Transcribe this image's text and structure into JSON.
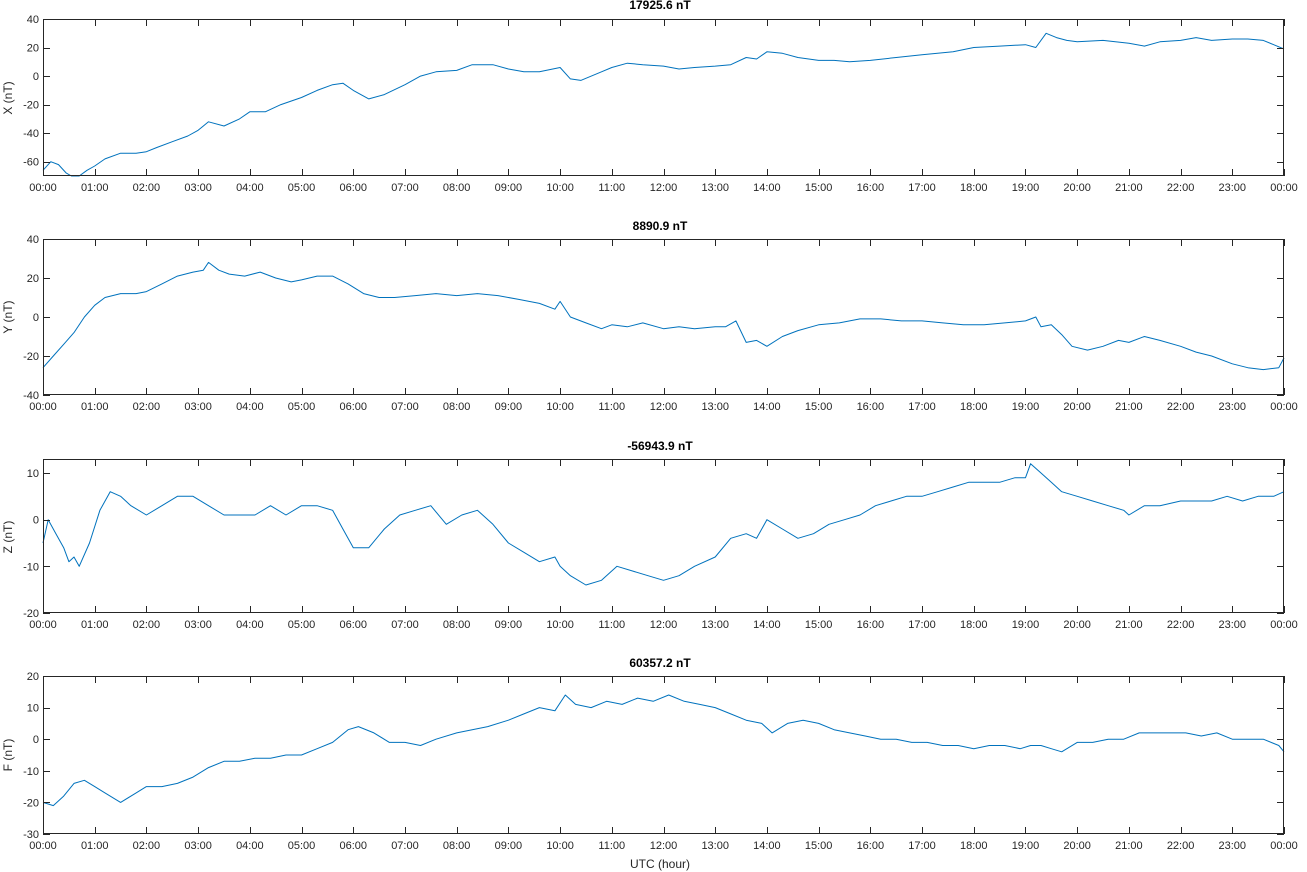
{
  "chart_data": [
    {
      "type": "line",
      "title": "17925.6 nT",
      "ylabel": "X (nT)",
      "xlabel": "",
      "ylim": [
        -70,
        40
      ],
      "yticks": [
        -60,
        -40,
        -20,
        0,
        20,
        40
      ],
      "xlim": [
        0,
        24
      ],
      "xtick_labels": [
        "00:00",
        "01:00",
        "02:00",
        "03:00",
        "04:00",
        "05:00",
        "06:00",
        "07:00",
        "08:00",
        "09:00",
        "10:00",
        "11:00",
        "12:00",
        "13:00",
        "14:00",
        "15:00",
        "16:00",
        "17:00",
        "18:00",
        "19:00",
        "20:00",
        "21:00",
        "22:00",
        "23:00",
        "00:00"
      ],
      "color": "#0072BD",
      "series": [
        {
          "x": [
            0,
            0.15,
            0.3,
            0.45,
            0.55,
            0.7,
            0.85,
            1.0,
            1.2,
            1.5,
            1.8,
            2.0,
            2.2,
            2.5,
            2.8,
            3.0,
            3.2,
            3.5,
            3.8,
            4.0,
            4.3,
            4.6,
            5.0,
            5.3,
            5.6,
            5.8,
            6.0,
            6.3,
            6.6,
            7.0,
            7.3,
            7.6,
            8.0,
            8.3,
            8.7,
            9.0,
            9.3,
            9.6,
            10.0,
            10.2,
            10.4,
            10.8,
            11.0,
            11.3,
            11.6,
            12.0,
            12.3,
            12.6,
            13.0,
            13.3,
            13.6,
            13.8,
            14.0,
            14.3,
            14.6,
            15.0,
            15.3,
            15.6,
            16.0,
            16.5,
            17.0,
            17.3,
            17.6,
            18.0,
            18.5,
            19.0,
            19.2,
            19.4,
            19.6,
            19.8,
            20.0,
            20.5,
            21.0,
            21.3,
            21.6,
            22.0,
            22.3,
            22.6,
            23.0,
            23.3,
            23.6,
            23.8,
            24.0
          ],
          "y": [
            -66,
            -60,
            -62,
            -68,
            -71,
            -70,
            -66,
            -63,
            -58,
            -54,
            -54,
            -53,
            -50,
            -46,
            -42,
            -38,
            -32,
            -35,
            -30,
            -25,
            -25,
            -20,
            -15,
            -10,
            -6,
            -5,
            -10,
            -16,
            -13,
            -6,
            0,
            3,
            4,
            8,
            8,
            5,
            3,
            3,
            6,
            -2,
            -3,
            3,
            6,
            9,
            8,
            7,
            5,
            6,
            7,
            8,
            13,
            12,
            17,
            16,
            13,
            11,
            11,
            10,
            11,
            13,
            15,
            16,
            17,
            20,
            21,
            22,
            20,
            30,
            27,
            25,
            24,
            25,
            23,
            21,
            24,
            25,
            27,
            25,
            26,
            26,
            25,
            22,
            19
          ]
        }
      ]
    },
    {
      "type": "line",
      "title": "8890.9 nT",
      "ylabel": "Y (nT)",
      "xlabel": "",
      "ylim": [
        -40,
        40
      ],
      "yticks": [
        -40,
        -20,
        0,
        20,
        40
      ],
      "xlim": [
        0,
        24
      ],
      "xtick_labels": [
        "00:00",
        "01:00",
        "02:00",
        "03:00",
        "04:00",
        "05:00",
        "06:00",
        "07:00",
        "08:00",
        "09:00",
        "10:00",
        "11:00",
        "12:00",
        "13:00",
        "14:00",
        "15:00",
        "16:00",
        "17:00",
        "18:00",
        "19:00",
        "20:00",
        "21:00",
        "22:00",
        "23:00",
        "00:00"
      ],
      "color": "#0072BD",
      "series": [
        {
          "x": [
            0,
            0.2,
            0.4,
            0.6,
            0.8,
            1.0,
            1.2,
            1.5,
            1.8,
            2.0,
            2.3,
            2.6,
            2.9,
            3.1,
            3.2,
            3.4,
            3.6,
            3.9,
            4.2,
            4.5,
            4.8,
            5.0,
            5.3,
            5.6,
            5.9,
            6.2,
            6.5,
            6.8,
            7.2,
            7.6,
            8.0,
            8.4,
            8.8,
            9.2,
            9.6,
            9.9,
            10.0,
            10.2,
            10.5,
            10.8,
            11.0,
            11.3,
            11.6,
            12.0,
            12.3,
            12.6,
            13.0,
            13.2,
            13.4,
            13.6,
            13.8,
            14.0,
            14.3,
            14.6,
            15.0,
            15.4,
            15.8,
            16.2,
            16.6,
            17.0,
            17.4,
            17.8,
            18.2,
            18.6,
            19.0,
            19.2,
            19.3,
            19.5,
            19.7,
            19.9,
            20.2,
            20.5,
            20.8,
            21.0,
            21.3,
            21.6,
            22.0,
            22.3,
            22.6,
            23.0,
            23.3,
            23.6,
            23.9,
            24.0
          ],
          "y": [
            -26,
            -20,
            -14,
            -8,
            0,
            6,
            10,
            12,
            12,
            13,
            17,
            21,
            23,
            24,
            28,
            24,
            22,
            21,
            23,
            20,
            18,
            19,
            21,
            21,
            17,
            12,
            10,
            10,
            11,
            12,
            11,
            12,
            11,
            9,
            7,
            4,
            8,
            0,
            -3,
            -6,
            -4,
            -5,
            -3,
            -6,
            -5,
            -6,
            -5,
            -5,
            -2,
            -13,
            -12,
            -15,
            -10,
            -7,
            -4,
            -3,
            -1,
            -1,
            -2,
            -2,
            -3,
            -4,
            -4,
            -3,
            -2,
            0,
            -5,
            -4,
            -9,
            -15,
            -17,
            -15,
            -12,
            -13,
            -10,
            -12,
            -15,
            -18,
            -20,
            -24,
            -26,
            -27,
            -26,
            -21
          ]
        }
      ]
    },
    {
      "type": "line",
      "title": "-56943.9 nT",
      "ylabel": "Z (nT)",
      "xlabel": "",
      "ylim": [
        -20,
        13
      ],
      "yticks": [
        -20,
        -10,
        0,
        10
      ],
      "xlim": [
        0,
        24
      ],
      "xtick_labels": [
        "00:00",
        "01:00",
        "02:00",
        "03:00",
        "04:00",
        "05:00",
        "06:00",
        "07:00",
        "08:00",
        "09:00",
        "10:00",
        "11:00",
        "12:00",
        "13:00",
        "14:00",
        "15:00",
        "16:00",
        "17:00",
        "18:00",
        "19:00",
        "20:00",
        "21:00",
        "22:00",
        "23:00",
        "00:00"
      ],
      "color": "#0072BD",
      "series": [
        {
          "x": [
            0,
            0.1,
            0.25,
            0.4,
            0.5,
            0.6,
            0.7,
            0.9,
            1.1,
            1.3,
            1.5,
            1.7,
            2.0,
            2.3,
            2.6,
            2.9,
            3.2,
            3.5,
            3.8,
            4.1,
            4.4,
            4.7,
            5.0,
            5.3,
            5.6,
            5.8,
            6.0,
            6.3,
            6.6,
            6.9,
            7.2,
            7.5,
            7.8,
            8.1,
            8.4,
            8.7,
            9.0,
            9.3,
            9.6,
            9.9,
            10.0,
            10.2,
            10.5,
            10.8,
            11.1,
            11.4,
            11.7,
            12.0,
            12.3,
            12.6,
            13.0,
            13.3,
            13.6,
            13.8,
            14.0,
            14.3,
            14.6,
            14.9,
            15.2,
            15.5,
            15.8,
            16.1,
            16.4,
            16.7,
            17.0,
            17.3,
            17.6,
            17.9,
            18.2,
            18.5,
            18.8,
            19.0,
            19.1,
            19.3,
            19.5,
            19.7,
            20.0,
            20.3,
            20.6,
            20.9,
            21.0,
            21.3,
            21.6,
            22.0,
            22.3,
            22.6,
            22.9,
            23.2,
            23.5,
            23.8,
            24.0
          ],
          "y": [
            -5,
            0,
            -3,
            -6,
            -9,
            -8,
            -10,
            -5,
            2,
            6,
            5,
            3,
            1,
            3,
            5,
            5,
            3,
            1,
            1,
            1,
            3,
            1,
            3,
            3,
            2,
            -2,
            -6,
            -6,
            -2,
            1,
            2,
            3,
            -1,
            1,
            2,
            -1,
            -5,
            -7,
            -9,
            -8,
            -10,
            -12,
            -14,
            -13,
            -10,
            -11,
            -12,
            -13,
            -12,
            -10,
            -8,
            -4,
            -3,
            -4,
            0,
            -2,
            -4,
            -3,
            -1,
            0,
            1,
            3,
            4,
            5,
            5,
            6,
            7,
            8,
            8,
            8,
            9,
            9,
            12,
            10,
            8,
            6,
            5,
            4,
            3,
            2,
            1,
            3,
            3,
            4,
            4,
            4,
            5,
            4,
            5,
            5,
            6
          ]
        }
      ]
    },
    {
      "type": "line",
      "title": "60357.2 nT",
      "ylabel": "F (nT)",
      "xlabel": "UTC (hour)",
      "ylim": [
        -30,
        20
      ],
      "yticks": [
        -30,
        -20,
        -10,
        0,
        10,
        20
      ],
      "xlim": [
        0,
        24
      ],
      "xtick_labels": [
        "00:00",
        "01:00",
        "02:00",
        "03:00",
        "04:00",
        "05:00",
        "06:00",
        "07:00",
        "08:00",
        "09:00",
        "10:00",
        "11:00",
        "12:00",
        "13:00",
        "14:00",
        "15:00",
        "16:00",
        "17:00",
        "18:00",
        "19:00",
        "20:00",
        "21:00",
        "22:00",
        "23:00",
        "00:00"
      ],
      "color": "#0072BD",
      "series": [
        {
          "x": [
            0,
            0.2,
            0.4,
            0.6,
            0.8,
            1.0,
            1.2,
            1.5,
            1.8,
            2.0,
            2.3,
            2.6,
            2.9,
            3.2,
            3.5,
            3.8,
            4.1,
            4.4,
            4.7,
            5.0,
            5.3,
            5.6,
            5.9,
            6.1,
            6.4,
            6.7,
            7.0,
            7.3,
            7.6,
            8.0,
            8.3,
            8.6,
            9.0,
            9.3,
            9.6,
            9.9,
            10.1,
            10.3,
            10.6,
            10.9,
            11.2,
            11.5,
            11.8,
            12.1,
            12.4,
            12.7,
            13.0,
            13.3,
            13.6,
            13.9,
            14.1,
            14.4,
            14.7,
            15.0,
            15.3,
            15.6,
            15.9,
            16.2,
            16.5,
            16.8,
            17.1,
            17.4,
            17.7,
            18.0,
            18.3,
            18.6,
            18.9,
            19.1,
            19.3,
            19.5,
            19.7,
            20.0,
            20.3,
            20.6,
            20.9,
            21.2,
            21.5,
            21.8,
            22.1,
            22.4,
            22.7,
            23.0,
            23.3,
            23.6,
            23.9,
            24.0
          ],
          "y": [
            -20,
            -21,
            -18,
            -14,
            -13,
            -15,
            -17,
            -20,
            -17,
            -15,
            -15,
            -14,
            -12,
            -9,
            -7,
            -7,
            -6,
            -6,
            -5,
            -5,
            -3,
            -1,
            3,
            4,
            2,
            -1,
            -1,
            -2,
            0,
            2,
            3,
            4,
            6,
            8,
            10,
            9,
            14,
            11,
            10,
            12,
            11,
            13,
            12,
            14,
            12,
            11,
            10,
            8,
            6,
            5,
            2,
            5,
            6,
            5,
            3,
            2,
            1,
            0,
            0,
            -1,
            -1,
            -2,
            -2,
            -3,
            -2,
            -2,
            -3,
            -2,
            -2,
            -3,
            -4,
            -1,
            -1,
            0,
            0,
            2,
            2,
            2,
            2,
            1,
            2,
            0,
            0,
            0,
            -2,
            -4
          ]
        }
      ]
    }
  ]
}
